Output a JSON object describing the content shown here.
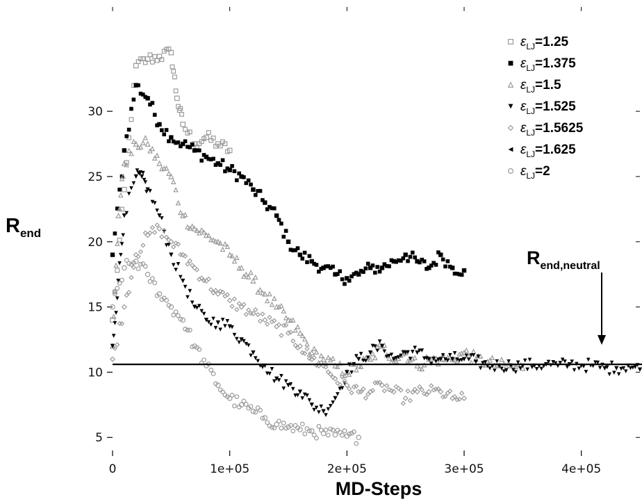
{
  "chart_data": {
    "type": "scatter",
    "xlabel": "MD-Steps",
    "ylabel_main": "R",
    "ylabel_sub": "end",
    "xlim": [
      0,
      450000
    ],
    "ylim": [
      4,
      38
    ],
    "x_ticks": [
      {
        "value": 0,
        "label": "0"
      },
      {
        "value": 100000,
        "label": "1e+05"
      },
      {
        "value": 200000,
        "label": "2e+05"
      },
      {
        "value": 300000,
        "label": "3e+05"
      },
      {
        "value": 400000,
        "label": "4e+05"
      }
    ],
    "y_ticks": [
      {
        "value": 5,
        "label": "5"
      },
      {
        "value": 10,
        "label": "10"
      },
      {
        "value": 15,
        "label": "15"
      },
      {
        "value": 20,
        "label": "20"
      },
      {
        "value": 25,
        "label": "25"
      },
      {
        "value": 30,
        "label": "30"
      }
    ],
    "hline": {
      "y": 10.6
    },
    "annotation": {
      "main": "R",
      "sub": "end,neutral",
      "x": 415000,
      "y": 10.9
    },
    "legend_prefix": "ε",
    "legend_sub": "LJ",
    "legend_placement": "top-right",
    "series": [
      {
        "name": "=1.25",
        "marker": "open-square",
        "color": "#9a9a9a",
        "points": [
          [
            0,
            14
          ],
          [
            10000,
            24
          ],
          [
            20000,
            33.5
          ],
          [
            30000,
            34
          ],
          [
            40000,
            34.2
          ],
          [
            50000,
            34.5
          ],
          [
            55000,
            31
          ],
          [
            60000,
            29
          ],
          [
            70000,
            27.5
          ],
          [
            80000,
            28
          ],
          [
            90000,
            27.5
          ],
          [
            100000,
            27
          ]
        ]
      },
      {
        "name": "=1.375",
        "marker": "filled-square",
        "color": "#000000",
        "points": [
          [
            0,
            19
          ],
          [
            10000,
            27
          ],
          [
            20000,
            32
          ],
          [
            30000,
            31
          ],
          [
            40000,
            29
          ],
          [
            50000,
            28
          ],
          [
            60000,
            27.5
          ],
          [
            70000,
            27
          ],
          [
            80000,
            26.5
          ],
          [
            90000,
            26
          ],
          [
            100000,
            25.5
          ],
          [
            110000,
            25
          ],
          [
            120000,
            24
          ],
          [
            130000,
            23
          ],
          [
            140000,
            22
          ],
          [
            150000,
            20
          ],
          [
            160000,
            19
          ],
          [
            170000,
            18.5
          ],
          [
            180000,
            18
          ],
          [
            190000,
            17.5
          ],
          [
            200000,
            17.2
          ],
          [
            210000,
            17.5
          ],
          [
            220000,
            18
          ],
          [
            230000,
            18
          ],
          [
            240000,
            18.5
          ],
          [
            250000,
            19
          ],
          [
            260000,
            18.5
          ],
          [
            270000,
            18
          ],
          [
            280000,
            19
          ],
          [
            290000,
            18
          ],
          [
            300000,
            17.8
          ]
        ]
      },
      {
        "name": "=1.5",
        "marker": "open-triangle",
        "color": "#9a9a9a",
        "points": [
          [
            0,
            12
          ],
          [
            5000,
            22
          ],
          [
            10000,
            26
          ],
          [
            20000,
            27.5
          ],
          [
            30000,
            27.5
          ],
          [
            40000,
            26
          ],
          [
            50000,
            25
          ],
          [
            60000,
            22
          ],
          [
            70000,
            21
          ],
          [
            80000,
            20.5
          ],
          [
            90000,
            20
          ],
          [
            100000,
            19
          ],
          [
            110000,
            18
          ],
          [
            120000,
            17
          ],
          [
            130000,
            16
          ],
          [
            140000,
            15
          ],
          [
            150000,
            14
          ],
          [
            160000,
            13
          ],
          [
            170000,
            11.5
          ],
          [
            180000,
            11
          ],
          [
            190000,
            10.5
          ],
          [
            200000,
            10
          ],
          [
            210000,
            10.5
          ],
          [
            220000,
            11
          ],
          [
            230000,
            12
          ],
          [
            240000,
            11
          ],
          [
            250000,
            11.5
          ],
          [
            260000,
            10.5
          ],
          [
            270000,
            11
          ],
          [
            280000,
            11
          ],
          [
            290000,
            11
          ],
          [
            300000,
            11.5
          ],
          [
            310000,
            11
          ],
          [
            320000,
            10.8
          ],
          [
            330000,
            10.5
          ],
          [
            340000,
            10.5
          ],
          [
            350000,
            10.3
          ]
        ]
      },
      {
        "name": "=1.525",
        "marker": "filled-down-triangle",
        "color": "#000000",
        "points": [
          [
            0,
            12
          ],
          [
            5000,
            17
          ],
          [
            10000,
            22
          ],
          [
            20000,
            25
          ],
          [
            25000,
            25
          ],
          [
            30000,
            24
          ],
          [
            40000,
            22
          ],
          [
            50000,
            19
          ],
          [
            60000,
            17
          ],
          [
            70000,
            15
          ],
          [
            80000,
            14
          ],
          [
            90000,
            13.8
          ],
          [
            100000,
            13.5
          ],
          [
            110000,
            12.5
          ],
          [
            120000,
            11.5
          ],
          [
            130000,
            10.5
          ],
          [
            140000,
            9.5
          ],
          [
            150000,
            9
          ],
          [
            160000,
            8.5
          ],
          [
            170000,
            7.5
          ],
          [
            180000,
            7
          ],
          [
            190000,
            8
          ],
          [
            200000,
            10
          ],
          [
            210000,
            11
          ],
          [
            220000,
            11.5
          ],
          [
            230000,
            12
          ],
          [
            240000,
            11
          ],
          [
            250000,
            11.5
          ],
          [
            260000,
            11.5
          ],
          [
            270000,
            11
          ],
          [
            280000,
            11
          ],
          [
            290000,
            11
          ],
          [
            300000,
            11
          ],
          [
            310000,
            10.8
          ],
          [
            320000,
            10.5
          ],
          [
            330000,
            10.5
          ],
          [
            340000,
            10.5
          ],
          [
            350000,
            10.5
          ],
          [
            360000,
            10.5
          ],
          [
            370000,
            10.6
          ],
          [
            380000,
            10.5
          ],
          [
            390000,
            10.6
          ],
          [
            400000,
            10.5
          ],
          [
            410000,
            10.5
          ],
          [
            420000,
            10.3
          ],
          [
            430000,
            10.3
          ],
          [
            440000,
            10.5
          ],
          [
            450000,
            10.2
          ]
        ]
      },
      {
        "name": "=1.5625",
        "marker": "open-diamond",
        "color": "#9a9a9a",
        "points": [
          [
            0,
            11
          ],
          [
            10000,
            15
          ],
          [
            20000,
            19
          ],
          [
            30000,
            20.5
          ],
          [
            40000,
            21
          ],
          [
            50000,
            20
          ],
          [
            60000,
            19
          ],
          [
            70000,
            18
          ],
          [
            80000,
            17
          ],
          [
            90000,
            16
          ],
          [
            100000,
            15.5
          ],
          [
            110000,
            15
          ],
          [
            120000,
            14.5
          ],
          [
            130000,
            14
          ],
          [
            140000,
            13.5
          ],
          [
            150000,
            13
          ],
          [
            160000,
            12
          ],
          [
            170000,
            11
          ],
          [
            180000,
            10.5
          ],
          [
            190000,
            9.5
          ],
          [
            200000,
            9
          ],
          [
            210000,
            8.5
          ],
          [
            220000,
            8.5
          ],
          [
            230000,
            9
          ],
          [
            240000,
            8.5
          ],
          [
            250000,
            8
          ],
          [
            260000,
            8.5
          ],
          [
            270000,
            8.5
          ],
          [
            280000,
            8.5
          ],
          [
            290000,
            8
          ],
          [
            300000,
            8
          ]
        ]
      },
      {
        "name": "=1.625",
        "marker": "filled-left-triangle",
        "color": "#000000",
        "points": []
      },
      {
        "name": "=2",
        "marker": "open-circle",
        "color": "#9a9a9a",
        "points": [
          [
            0,
            15
          ],
          [
            10000,
            18
          ],
          [
            20000,
            18.5
          ],
          [
            30000,
            17.5
          ],
          [
            40000,
            16
          ],
          [
            50000,
            15
          ],
          [
            60000,
            14
          ],
          [
            70000,
            12
          ],
          [
            80000,
            10.5
          ],
          [
            90000,
            9
          ],
          [
            100000,
            8
          ],
          [
            110000,
            7.5
          ],
          [
            120000,
            7
          ],
          [
            130000,
            6.5
          ],
          [
            140000,
            6
          ],
          [
            150000,
            5.8
          ],
          [
            160000,
            5.6
          ],
          [
            170000,
            5.5
          ],
          [
            180000,
            5.3
          ],
          [
            190000,
            5.2
          ],
          [
            200000,
            5.1
          ],
          [
            210000,
            5
          ]
        ]
      }
    ]
  }
}
